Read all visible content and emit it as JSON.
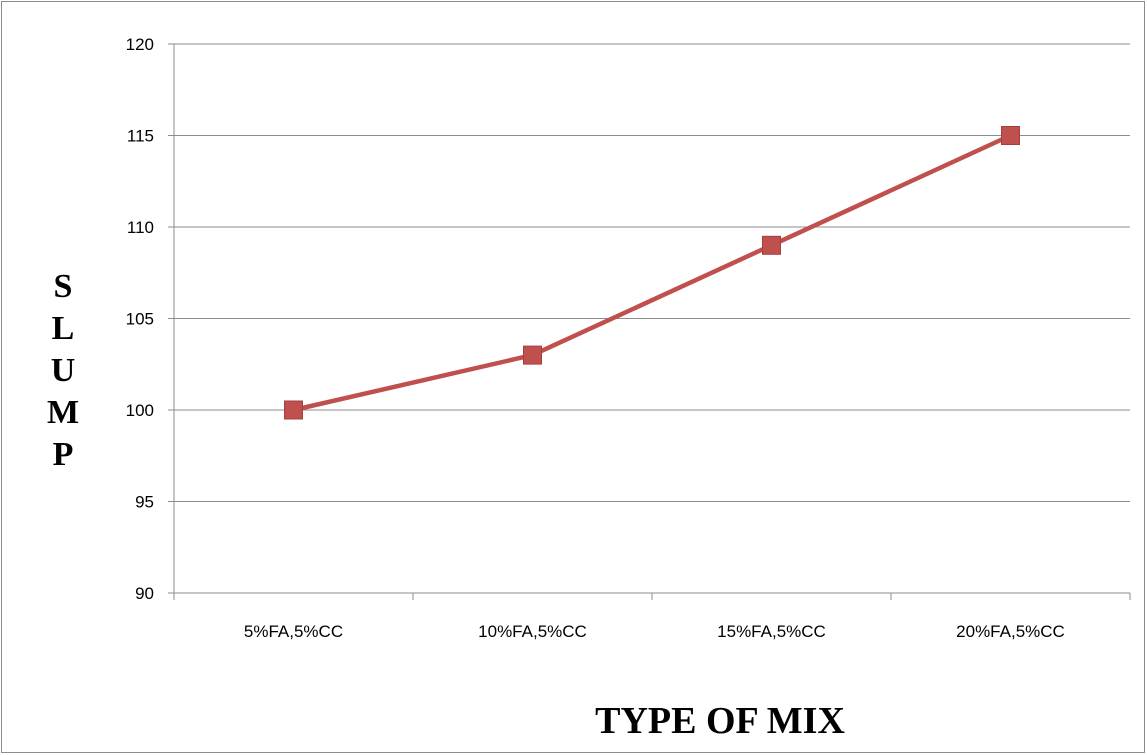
{
  "chart_data": {
    "type": "line",
    "title": "",
    "xlabel": "TYPE OF MIX",
    "ylabel": "SLUMP",
    "categories": [
      "5%FA,5%CC",
      "10%FA,5%CC",
      "15%FA,5%CC",
      "20%FA,5%CC"
    ],
    "series": [
      {
        "values": [
          100,
          103,
          109,
          115
        ],
        "color": "#C0504D",
        "marker": "square"
      }
    ],
    "ylim": [
      90,
      120
    ],
    "yticks": [
      90,
      95,
      100,
      105,
      110,
      115,
      120
    ],
    "grid": "horizontal",
    "legend": "none"
  }
}
